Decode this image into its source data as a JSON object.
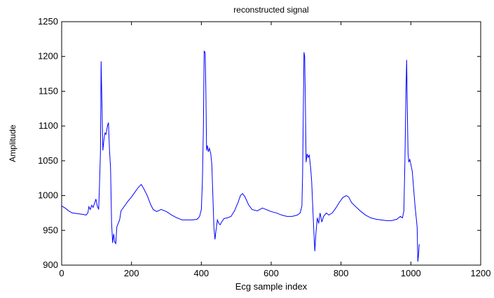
{
  "chart_data": {
    "type": "line",
    "title": "reconstructed signal",
    "xlabel": "Ecg sample index",
    "ylabel": "Amplitude",
    "xlim": [
      0,
      1200
    ],
    "ylim": [
      900,
      1250
    ],
    "xticks": [
      0,
      200,
      400,
      600,
      800,
      1000,
      1200
    ],
    "yticks": [
      900,
      950,
      1000,
      1050,
      1100,
      1150,
      1200,
      1250
    ],
    "grid": false,
    "series": [
      {
        "color": "#0000ff",
        "points": [
          [
            0,
            985
          ],
          [
            10,
            982
          ],
          [
            20,
            978
          ],
          [
            30,
            975
          ],
          [
            45,
            974
          ],
          [
            60,
            973
          ],
          [
            70,
            972
          ],
          [
            75,
            975
          ],
          [
            78,
            984
          ],
          [
            82,
            980
          ],
          [
            86,
            986
          ],
          [
            90,
            983
          ],
          [
            95,
            990
          ],
          [
            98,
            995
          ],
          [
            102,
            985
          ],
          [
            106,
            980
          ],
          [
            108,
            1010
          ],
          [
            111,
            1060
          ],
          [
            113,
            1193
          ],
          [
            115,
            1140
          ],
          [
            118,
            1065
          ],
          [
            121,
            1080
          ],
          [
            124,
            1090
          ],
          [
            127,
            1088
          ],
          [
            131,
            1100
          ],
          [
            134,
            1105
          ],
          [
            137,
            1065
          ],
          [
            140,
            1040
          ],
          [
            143,
            960
          ],
          [
            146,
            932
          ],
          [
            149,
            945
          ],
          [
            152,
            933
          ],
          [
            155,
            931
          ],
          [
            158,
            955
          ],
          [
            162,
            960
          ],
          [
            166,
            965
          ],
          [
            170,
            978
          ],
          [
            180,
            985
          ],
          [
            190,
            992
          ],
          [
            200,
            998
          ],
          [
            210,
            1005
          ],
          [
            220,
            1012
          ],
          [
            228,
            1016
          ],
          [
            235,
            1010
          ],
          [
            245,
            1000
          ],
          [
            255,
            987
          ],
          [
            262,
            980
          ],
          [
            272,
            977
          ],
          [
            285,
            980
          ],
          [
            300,
            977
          ],
          [
            315,
            972
          ],
          [
            330,
            968
          ],
          [
            345,
            965
          ],
          [
            360,
            965
          ],
          [
            375,
            965
          ],
          [
            388,
            966
          ],
          [
            395,
            970
          ],
          [
            400,
            980
          ],
          [
            403,
            1020
          ],
          [
            406,
            1100
          ],
          [
            408,
            1208
          ],
          [
            411,
            1205
          ],
          [
            413,
            1150
          ],
          [
            415,
            1065
          ],
          [
            417,
            1072
          ],
          [
            420,
            1063
          ],
          [
            423,
            1068
          ],
          [
            427,
            1060
          ],
          [
            430,
            1045
          ],
          [
            433,
            1000
          ],
          [
            436,
            955
          ],
          [
            439,
            937
          ],
          [
            442,
            950
          ],
          [
            446,
            965
          ],
          [
            450,
            960
          ],
          [
            454,
            958
          ],
          [
            458,
            962
          ],
          [
            465,
            967
          ],
          [
            475,
            968
          ],
          [
            485,
            970
          ],
          [
            495,
            978
          ],
          [
            505,
            990
          ],
          [
            512,
            1000
          ],
          [
            518,
            1003
          ],
          [
            525,
            998
          ],
          [
            535,
            987
          ],
          [
            545,
            980
          ],
          [
            560,
            978
          ],
          [
            575,
            982
          ],
          [
            585,
            980
          ],
          [
            600,
            977
          ],
          [
            615,
            975
          ],
          [
            630,
            972
          ],
          [
            645,
            970
          ],
          [
            660,
            970
          ],
          [
            675,
            972
          ],
          [
            683,
            975
          ],
          [
            688,
            985
          ],
          [
            690,
            1030
          ],
          [
            692,
            1120
          ],
          [
            694,
            1206
          ],
          [
            696,
            1200
          ],
          [
            698,
            1130
          ],
          [
            700,
            1048
          ],
          [
            703,
            1060
          ],
          [
            706,
            1055
          ],
          [
            709,
            1058
          ],
          [
            713,
            1040
          ],
          [
            716,
            1020
          ],
          [
            719,
            985
          ],
          [
            722,
            950
          ],
          [
            725,
            920
          ],
          [
            728,
            945
          ],
          [
            732,
            968
          ],
          [
            736,
            960
          ],
          [
            740,
            975
          ],
          [
            745,
            962
          ],
          [
            750,
            970
          ],
          [
            758,
            975
          ],
          [
            765,
            972
          ],
          [
            775,
            975
          ],
          [
            785,
            982
          ],
          [
            795,
            990
          ],
          [
            805,
            997
          ],
          [
            815,
            1000
          ],
          [
            822,
            998
          ],
          [
            830,
            990
          ],
          [
            840,
            985
          ],
          [
            855,
            978
          ],
          [
            870,
            972
          ],
          [
            885,
            968
          ],
          [
            900,
            966
          ],
          [
            915,
            965
          ],
          [
            930,
            964
          ],
          [
            945,
            964
          ],
          [
            960,
            966
          ],
          [
            970,
            970
          ],
          [
            976,
            968
          ],
          [
            980,
            978
          ],
          [
            983,
            1050
          ],
          [
            986,
            1150
          ],
          [
            988,
            1195
          ],
          [
            990,
            1120
          ],
          [
            992,
            1060
          ],
          [
            994,
            1048
          ],
          [
            997,
            1052
          ],
          [
            1000,
            1045
          ],
          [
            1004,
            1035
          ],
          [
            1008,
            1010
          ],
          [
            1012,
            985
          ],
          [
            1015,
            970
          ],
          [
            1018,
            955
          ],
          [
            1020,
            905
          ],
          [
            1022,
            915
          ],
          [
            1024,
            930
          ]
        ]
      }
    ]
  }
}
